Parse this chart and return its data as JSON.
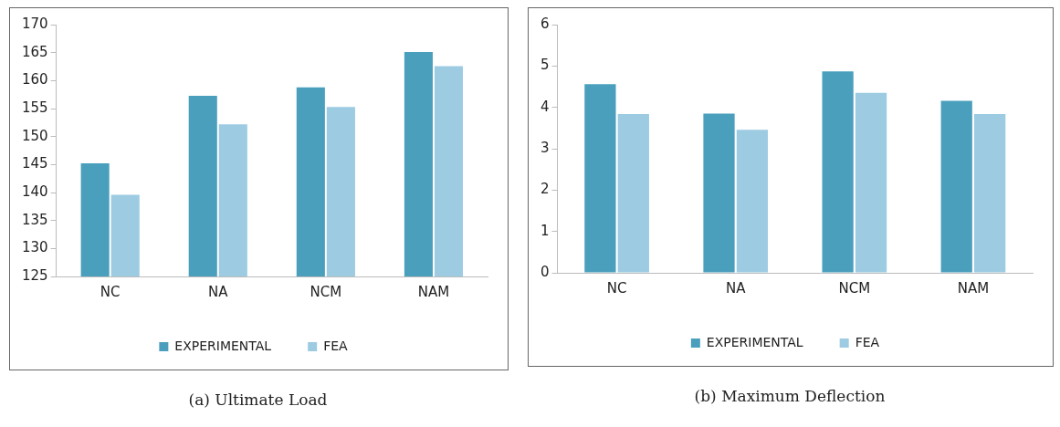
{
  "chart_data": [
    {
      "type": "bar",
      "title": "(a) Ultimate Load",
      "categories": [
        "NC",
        "NA",
        "NCM",
        "NAM"
      ],
      "series": [
        {
          "name": "EXPERIMENTAL",
          "color": "#4a9fbd",
          "values": [
            145.2,
            157.3,
            158.8,
            165.1
          ]
        },
        {
          "name": "FEA",
          "color": "#9ccbe2",
          "values": [
            139.6,
            152.2,
            155.3,
            162.6
          ]
        }
      ],
      "ylim": [
        125,
        170
      ],
      "yticks": [
        125,
        130,
        135,
        140,
        145,
        150,
        155,
        160,
        165,
        170
      ],
      "grid": false,
      "legend": "bottom"
    },
    {
      "type": "bar",
      "title": "(b) Maximum Deflection",
      "categories": [
        "NC",
        "NA",
        "NCM",
        "NAM"
      ],
      "series": [
        {
          "name": "EXPERIMENTAL",
          "color": "#4a9fbd",
          "values": [
            4.56,
            3.85,
            4.87,
            4.16
          ]
        },
        {
          "name": "FEA",
          "color": "#9ccbe2",
          "values": [
            3.84,
            3.46,
            4.35,
            3.84
          ]
        }
      ],
      "ylim": [
        0,
        6
      ],
      "yticks": [
        0,
        1,
        2,
        3,
        4,
        5,
        6
      ],
      "grid": false,
      "legend": "bottom"
    }
  ]
}
